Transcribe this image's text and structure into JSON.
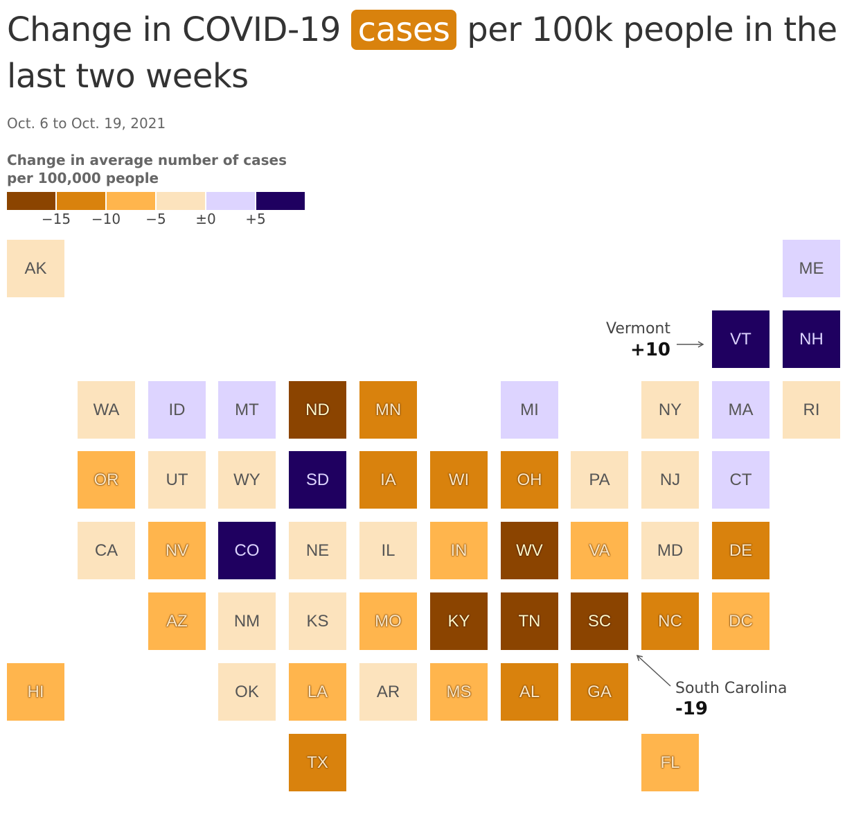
{
  "title": {
    "before": "Change in COVID-19 ",
    "highlight": "cases",
    "after": " per 100k people in the last two weeks",
    "highlight_color": "#d9820d"
  },
  "subtitle": "Oct. 6 to Oct. 19, 2021",
  "legend": {
    "title": "Change in average number of cases per 100,000 people",
    "bins": [
      {
        "color": "#8b4400"
      },
      {
        "color": "#d9820d"
      },
      {
        "color": "#ffb54d"
      },
      {
        "color": "#fce3bd"
      },
      {
        "color": "#ddd4ff"
      },
      {
        "color": "#1f0060"
      }
    ],
    "ticks": [
      "−15",
      "−10",
      "−5",
      "±0",
      "+5"
    ]
  },
  "chart_data": {
    "type": "tile-grid-map",
    "bin_thresholds": [
      -15,
      -10,
      -5,
      0,
      5
    ],
    "bin_colors": [
      "#8b4400",
      "#d9820d",
      "#ffb54d",
      "#fce3bd",
      "#ddd4ff",
      "#1f0060"
    ],
    "states": [
      {
        "abbr": "AK",
        "row": 0,
        "col": 0,
        "bin": 3
      },
      {
        "abbr": "ME",
        "row": 0,
        "col": 11,
        "bin": 4
      },
      {
        "abbr": "VT",
        "row": 1,
        "col": 10,
        "bin": 5
      },
      {
        "abbr": "NH",
        "row": 1,
        "col": 11,
        "bin": 5
      },
      {
        "abbr": "WA",
        "row": 2,
        "col": 1,
        "bin": 3
      },
      {
        "abbr": "ID",
        "row": 2,
        "col": 2,
        "bin": 4
      },
      {
        "abbr": "MT",
        "row": 2,
        "col": 3,
        "bin": 4
      },
      {
        "abbr": "ND",
        "row": 2,
        "col": 4,
        "bin": 0
      },
      {
        "abbr": "MN",
        "row": 2,
        "col": 5,
        "bin": 1
      },
      {
        "abbr": "MI",
        "row": 2,
        "col": 7,
        "bin": 4
      },
      {
        "abbr": "NY",
        "row": 2,
        "col": 9,
        "bin": 3
      },
      {
        "abbr": "MA",
        "row": 2,
        "col": 10,
        "bin": 4
      },
      {
        "abbr": "RI",
        "row": 2,
        "col": 11,
        "bin": 3
      },
      {
        "abbr": "OR",
        "row": 3,
        "col": 1,
        "bin": 2
      },
      {
        "abbr": "UT",
        "row": 3,
        "col": 2,
        "bin": 3
      },
      {
        "abbr": "WY",
        "row": 3,
        "col": 3,
        "bin": 3
      },
      {
        "abbr": "SD",
        "row": 3,
        "col": 4,
        "bin": 5
      },
      {
        "abbr": "IA",
        "row": 3,
        "col": 5,
        "bin": 1
      },
      {
        "abbr": "WI",
        "row": 3,
        "col": 6,
        "bin": 1
      },
      {
        "abbr": "OH",
        "row": 3,
        "col": 7,
        "bin": 1
      },
      {
        "abbr": "PA",
        "row": 3,
        "col": 8,
        "bin": 3
      },
      {
        "abbr": "NJ",
        "row": 3,
        "col": 9,
        "bin": 3
      },
      {
        "abbr": "CT",
        "row": 3,
        "col": 10,
        "bin": 4
      },
      {
        "abbr": "CA",
        "row": 4,
        "col": 1,
        "bin": 3
      },
      {
        "abbr": "NV",
        "row": 4,
        "col": 2,
        "bin": 2
      },
      {
        "abbr": "CO",
        "row": 4,
        "col": 3,
        "bin": 5
      },
      {
        "abbr": "NE",
        "row": 4,
        "col": 4,
        "bin": 3
      },
      {
        "abbr": "IL",
        "row": 4,
        "col": 5,
        "bin": 3
      },
      {
        "abbr": "IN",
        "row": 4,
        "col": 6,
        "bin": 2
      },
      {
        "abbr": "WV",
        "row": 4,
        "col": 7,
        "bin": 0
      },
      {
        "abbr": "VA",
        "row": 4,
        "col": 8,
        "bin": 2
      },
      {
        "abbr": "MD",
        "row": 4,
        "col": 9,
        "bin": 3
      },
      {
        "abbr": "DE",
        "row": 4,
        "col": 10,
        "bin": 1
      },
      {
        "abbr": "AZ",
        "row": 5,
        "col": 2,
        "bin": 2
      },
      {
        "abbr": "NM",
        "row": 5,
        "col": 3,
        "bin": 3
      },
      {
        "abbr": "KS",
        "row": 5,
        "col": 4,
        "bin": 3
      },
      {
        "abbr": "MO",
        "row": 5,
        "col": 5,
        "bin": 2
      },
      {
        "abbr": "KY",
        "row": 5,
        "col": 6,
        "bin": 0
      },
      {
        "abbr": "TN",
        "row": 5,
        "col": 7,
        "bin": 0
      },
      {
        "abbr": "SC",
        "row": 5,
        "col": 8,
        "bin": 0
      },
      {
        "abbr": "NC",
        "row": 5,
        "col": 9,
        "bin": 1
      },
      {
        "abbr": "DC",
        "row": 5,
        "col": 10,
        "bin": 2
      },
      {
        "abbr": "HI",
        "row": 6,
        "col": 0,
        "bin": 2
      },
      {
        "abbr": "OK",
        "row": 6,
        "col": 3,
        "bin": 3
      },
      {
        "abbr": "LA",
        "row": 6,
        "col": 4,
        "bin": 2
      },
      {
        "abbr": "AR",
        "row": 6,
        "col": 5,
        "bin": 3
      },
      {
        "abbr": "MS",
        "row": 6,
        "col": 6,
        "bin": 2
      },
      {
        "abbr": "AL",
        "row": 6,
        "col": 7,
        "bin": 1
      },
      {
        "abbr": "GA",
        "row": 6,
        "col": 8,
        "bin": 1
      },
      {
        "abbr": "TX",
        "row": 7,
        "col": 4,
        "bin": 1
      },
      {
        "abbr": "FL",
        "row": 7,
        "col": 9,
        "bin": 2
      }
    ],
    "annotations": [
      {
        "state": "VT",
        "name": "Vermont",
        "value": "+10"
      },
      {
        "state": "SC",
        "name": "South Carolina",
        "value": "-19"
      }
    ]
  }
}
